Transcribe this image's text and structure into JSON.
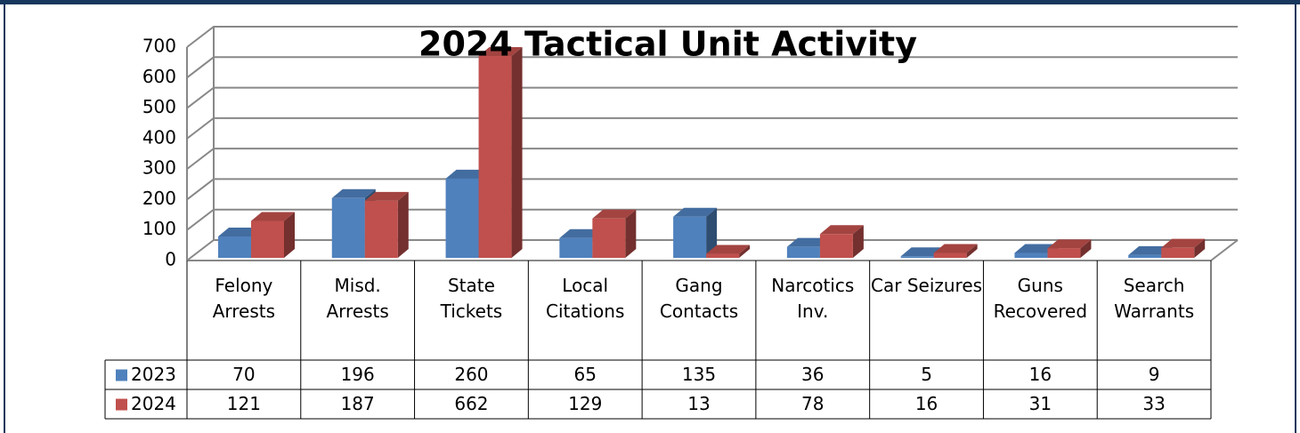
{
  "chart_data": {
    "type": "bar3d",
    "title": "2024 Tactical Unit Activity",
    "categories": [
      "Felony Arrests",
      "Misd. Arrests",
      "State Tickets",
      "Local Citations",
      "Gang Contacts",
      "Narcotics Inv.",
      "Car Seizures",
      "Guns Recovered",
      "Search Warrants"
    ],
    "series": [
      {
        "name": "2023",
        "color": "#4f81bd",
        "values": [
          70,
          196,
          260,
          65,
          135,
          36,
          5,
          16,
          9
        ]
      },
      {
        "name": "2024",
        "color": "#c0504d",
        "values": [
          121,
          187,
          662,
          129,
          13,
          78,
          16,
          31,
          33
        ]
      }
    ],
    "ylim": [
      0,
      700
    ],
    "yticks": [
      0,
      100,
      200,
      300,
      400,
      500,
      600,
      700
    ],
    "grid": true,
    "data_table": true
  }
}
